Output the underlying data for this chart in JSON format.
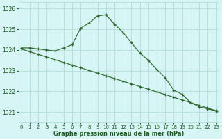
{
  "line1_x": [
    0,
    1,
    2,
    3,
    4,
    5,
    6,
    7,
    8,
    9,
    10,
    11,
    12,
    13,
    14,
    15,
    16,
    17,
    18,
    19,
    20,
    21,
    22,
    23
  ],
  "line1_y": [
    1024.1,
    1024.1,
    1024.05,
    1024.0,
    1023.95,
    1024.1,
    1024.25,
    1025.05,
    1025.3,
    1025.65,
    1025.7,
    1025.25,
    1024.85,
    1024.35,
    1023.85,
    1023.5,
    1023.05,
    1022.65,
    1022.05,
    1021.85,
    1021.45,
    1021.25,
    1021.15,
    1021.05
  ],
  "line2_x": [
    0,
    1,
    2,
    3,
    4,
    5,
    6,
    7,
    8,
    9,
    10,
    11,
    12,
    13,
    14,
    15,
    16,
    17,
    18,
    19,
    20,
    21,
    22,
    23
  ],
  "line2_y": [
    1024.05,
    1023.92,
    1023.79,
    1023.66,
    1023.53,
    1023.4,
    1023.27,
    1023.14,
    1023.01,
    1022.88,
    1022.75,
    1022.62,
    1022.49,
    1022.36,
    1022.23,
    1022.1,
    1021.97,
    1021.84,
    1021.71,
    1021.58,
    1021.45,
    1021.32,
    1021.19,
    1021.06
  ],
  "line_color": "#2d6a2d",
  "background_color": "#d8f5f5",
  "grid_color": "#b8dfdf",
  "xlabel": "Graphe pression niveau de la mer (hPa)",
  "xlabel_color": "#1a5c1a",
  "tick_color": "#1a5c1a",
  "ylim": [
    1020.5,
    1026.3
  ],
  "yticks": [
    1021,
    1022,
    1023,
    1024,
    1025,
    1026
  ],
  "xlim": [
    -0.3,
    23.3
  ],
  "xticks": [
    0,
    1,
    2,
    3,
    4,
    5,
    6,
    7,
    8,
    9,
    10,
    11,
    12,
    13,
    14,
    15,
    16,
    17,
    18,
    19,
    20,
    21,
    22,
    23
  ]
}
